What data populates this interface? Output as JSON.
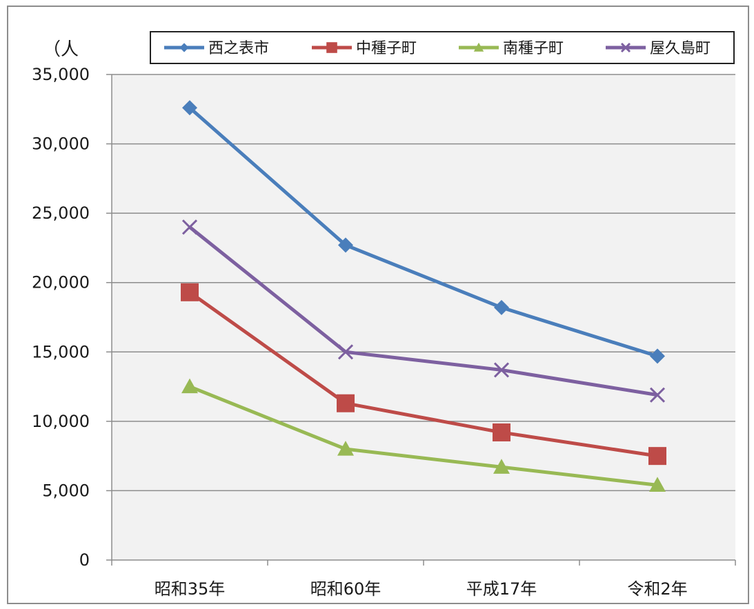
{
  "chart_data": {
    "type": "line",
    "unit_label": "（人",
    "categories": [
      "昭和35年",
      "昭和60年",
      "平成17年",
      "令和2年"
    ],
    "ylim": [
      0,
      35000
    ],
    "yticks": [
      0,
      5000,
      10000,
      15000,
      20000,
      25000,
      30000,
      35000
    ],
    "ytick_labels": [
      "0",
      "5,000",
      "10,000",
      "15,000",
      "20,000",
      "25,000",
      "30,000",
      "35,000"
    ],
    "grid": true,
    "legend_position": "top",
    "series": [
      {
        "name": "西之表市",
        "color": "#4a7ebb",
        "marker": "diamond",
        "values": [
          32600,
          22700,
          18200,
          14700
        ]
      },
      {
        "name": "中種子町",
        "color": "#be4b48",
        "marker": "square",
        "values": [
          19300,
          11300,
          9200,
          7500
        ]
      },
      {
        "name": "南種子町",
        "color": "#98b954",
        "marker": "triangle",
        "values": [
          12500,
          8000,
          6700,
          5400
        ]
      },
      {
        "name": "屋久島町",
        "color": "#7d60a0",
        "marker": "x",
        "values": [
          24000,
          15000,
          13700,
          11900
        ]
      }
    ]
  }
}
